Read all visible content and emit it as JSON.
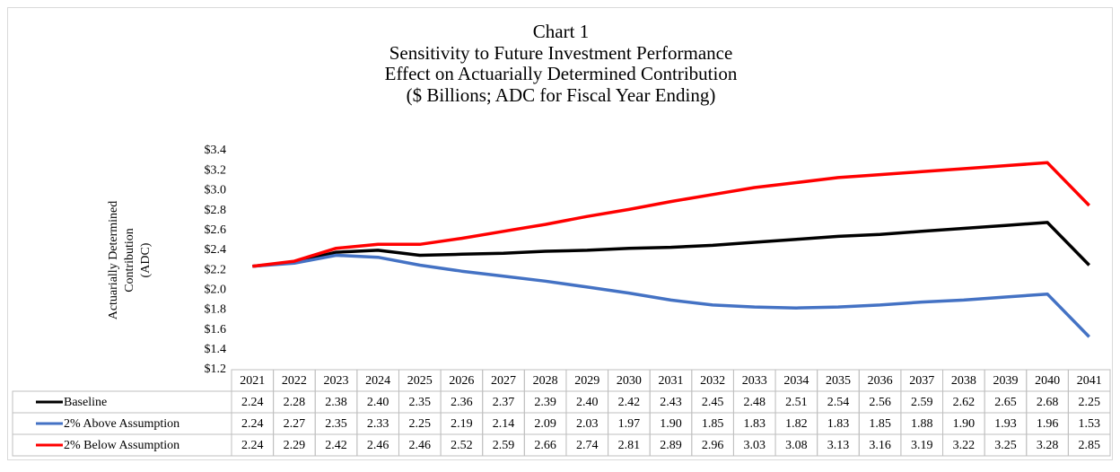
{
  "chart_data": {
    "type": "line",
    "title": [
      "Chart 1",
      "Sensitivity to Future Investment Performance",
      "Effect on Actuarially Determined Contribution",
      "($ Billions; ADC for Fiscal Year Ending)"
    ],
    "ylabel": [
      "Actuarially Determined",
      "Contribution",
      "(ADC)"
    ],
    "categories": [
      "2021",
      "2022",
      "2023",
      "2024",
      "2025",
      "2026",
      "2027",
      "2028",
      "2029",
      "2030",
      "2031",
      "2032",
      "2033",
      "2034",
      "2035",
      "2036",
      "2037",
      "2038",
      "2039",
      "2040",
      "2041"
    ],
    "series": [
      {
        "name": "Baseline",
        "color": "#000000",
        "values": [
          2.24,
          2.28,
          2.38,
          2.4,
          2.35,
          2.36,
          2.37,
          2.39,
          2.4,
          2.42,
          2.43,
          2.45,
          2.48,
          2.51,
          2.54,
          2.56,
          2.59,
          2.62,
          2.65,
          2.68,
          2.25
        ],
        "value_labels": [
          "2.24",
          "2.28",
          "2.38",
          "2.40",
          "2.35",
          "2.36",
          "2.37",
          "2.39",
          "2.40",
          "2.42",
          "2.43",
          "2.45",
          "2.48",
          "2.51",
          "2.54",
          "2.56",
          "2.59",
          "2.62",
          "2.65",
          "2.68",
          "2.25"
        ]
      },
      {
        "name": "2% Above Assumption",
        "color": "#4472c4",
        "values": [
          2.24,
          2.27,
          2.35,
          2.33,
          2.25,
          2.19,
          2.14,
          2.09,
          2.03,
          1.97,
          1.9,
          1.85,
          1.83,
          1.82,
          1.83,
          1.85,
          1.88,
          1.9,
          1.93,
          1.96,
          1.53
        ],
        "value_labels": [
          "2.24",
          "2.27",
          "2.35",
          "2.33",
          "2.25",
          "2.19",
          "2.14",
          "2.09",
          "2.03",
          "1.97",
          "1.90",
          "1.85",
          "1.83",
          "1.82",
          "1.83",
          "1.85",
          "1.88",
          "1.90",
          "1.93",
          "1.96",
          "1.53"
        ]
      },
      {
        "name": "2% Below Assumption",
        "color": "#ff0000",
        "values": [
          2.24,
          2.29,
          2.42,
          2.46,
          2.46,
          2.52,
          2.59,
          2.66,
          2.74,
          2.81,
          2.89,
          2.96,
          3.03,
          3.08,
          3.13,
          3.16,
          3.19,
          3.22,
          3.25,
          3.28,
          2.85
        ],
        "value_labels": [
          "2.24",
          "2.29",
          "2.42",
          "2.46",
          "2.46",
          "2.52",
          "2.59",
          "2.66",
          "2.74",
          "2.81",
          "2.89",
          "2.96",
          "3.03",
          "3.08",
          "3.13",
          "3.16",
          "3.19",
          "3.22",
          "3.25",
          "3.28",
          "2.85"
        ]
      }
    ],
    "ylim": [
      1.2,
      3.4
    ],
    "yticks": [
      {
        "value": 1.2,
        "label": "$1.2"
      },
      {
        "value": 1.4,
        "label": "$1.4"
      },
      {
        "value": 1.6,
        "label": "$1.6"
      },
      {
        "value": 1.8,
        "label": "$1.8"
      },
      {
        "value": 2,
        "label": "$2.0"
      },
      {
        "value": 2.2,
        "label": "$2.2"
      },
      {
        "value": 2.4,
        "label": "$2.4"
      },
      {
        "value": 2.6,
        "label": "$2.6"
      },
      {
        "value": 2.8,
        "label": "$2.8"
      },
      {
        "value": 3,
        "label": "$3.0"
      },
      {
        "value": 3.2,
        "label": "$3.2"
      },
      {
        "value": 3.4,
        "label": "$3.4"
      }
    ],
    "grid": false
  }
}
